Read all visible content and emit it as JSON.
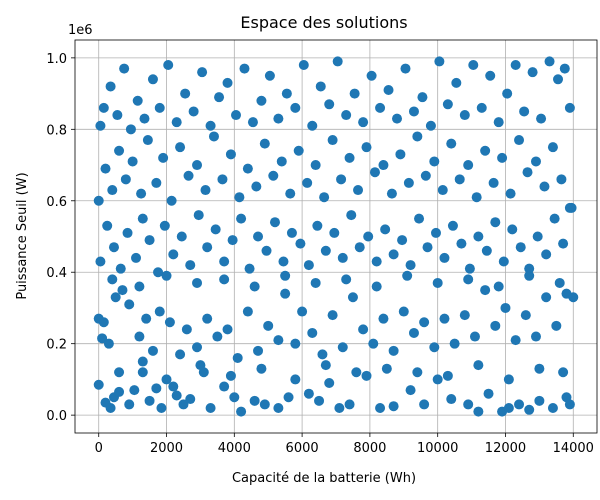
{
  "chart_data": {
    "type": "scatter",
    "title": "Espace des solutions",
    "xlabel": "Capacité de la batterie (Wh)",
    "ylabel": "Puissance Seuil (W)",
    "y_offset_label": "1e6",
    "xlim": [
      -700,
      14700
    ],
    "ylim": [
      -0.05,
      1.05
    ],
    "xticks": [
      0,
      2000,
      4000,
      6000,
      8000,
      10000,
      12000,
      14000
    ],
    "xtick_labels": [
      "0",
      "2000",
      "4000",
      "6000",
      "8000",
      "10000",
      "12000",
      "14000"
    ],
    "yticks": [
      0.0,
      0.2,
      0.4,
      0.6,
      0.8,
      1.0
    ],
    "ytick_labels": [
      "0.0",
      "0.2",
      "0.4",
      "0.6",
      "0.8",
      "1.0"
    ],
    "grid": true,
    "marker_color": "#1f77b4",
    "points": [
      [
        0,
        0.085
      ],
      [
        100,
        0.215
      ],
      [
        150,
        0.26
      ],
      [
        200,
        0.035
      ],
      [
        350,
        0.02
      ],
      [
        450,
        0.05
      ],
      [
        600,
        0.065
      ],
      [
        900,
        0.03
      ],
      [
        1050,
        0.07
      ],
      [
        1300,
        0.12
      ],
      [
        1500,
        0.04
      ],
      [
        1700,
        0.075
      ],
      [
        1850,
        0.02
      ],
      [
        2000,
        0.1
      ],
      [
        2300,
        0.055
      ],
      [
        2500,
        0.03
      ],
      [
        2700,
        0.045
      ],
      [
        3100,
        0.12
      ],
      [
        3300,
        0.02
      ],
      [
        3700,
        0.08
      ],
      [
        4000,
        0.05
      ],
      [
        4200,
        0.01
      ],
      [
        4600,
        0.04
      ],
      [
        4900,
        0.03
      ],
      [
        5300,
        0.02
      ],
      [
        5600,
        0.05
      ],
      [
        6200,
        0.06
      ],
      [
        6500,
        0.04
      ],
      [
        6800,
        0.09
      ],
      [
        7100,
        0.02
      ],
      [
        7400,
        0.03
      ],
      [
        7900,
        0.11
      ],
      [
        8300,
        0.02
      ],
      [
        8700,
        0.025
      ],
      [
        9200,
        0.07
      ],
      [
        9600,
        0.03
      ],
      [
        10000,
        0.1
      ],
      [
        10400,
        0.045
      ],
      [
        10900,
        0.03
      ],
      [
        11200,
        0.01
      ],
      [
        11500,
        0.06
      ],
      [
        11900,
        0.01
      ],
      [
        12100,
        0.02
      ],
      [
        12400,
        0.03
      ],
      [
        12700,
        0.015
      ],
      [
        13000,
        0.04
      ],
      [
        13400,
        0.02
      ],
      [
        13800,
        0.05
      ],
      [
        13900,
        0.03
      ],
      [
        0,
        0.27
      ],
      [
        300,
        0.2
      ],
      [
        500,
        0.33
      ],
      [
        700,
        0.35
      ],
      [
        900,
        0.31
      ],
      [
        1200,
        0.22
      ],
      [
        1400,
        0.27
      ],
      [
        1600,
        0.18
      ],
      [
        1800,
        0.29
      ],
      [
        2100,
        0.26
      ],
      [
        2400,
        0.17
      ],
      [
        2600,
        0.24
      ],
      [
        2900,
        0.19
      ],
      [
        3200,
        0.27
      ],
      [
        3500,
        0.22
      ],
      [
        3800,
        0.24
      ],
      [
        4100,
        0.16
      ],
      [
        4400,
        0.29
      ],
      [
        4700,
        0.18
      ],
      [
        5000,
        0.25
      ],
      [
        5300,
        0.21
      ],
      [
        5500,
        0.34
      ],
      [
        5800,
        0.2
      ],
      [
        6000,
        0.29
      ],
      [
        6300,
        0.23
      ],
      [
        6600,
        0.17
      ],
      [
        6900,
        0.28
      ],
      [
        7200,
        0.19
      ],
      [
        7500,
        0.33
      ],
      [
        7800,
        0.24
      ],
      [
        8100,
        0.2
      ],
      [
        8400,
        0.27
      ],
      [
        8700,
        0.18
      ],
      [
        9000,
        0.29
      ],
      [
        9300,
        0.23
      ],
      [
        9600,
        0.26
      ],
      [
        9900,
        0.19
      ],
      [
        10200,
        0.27
      ],
      [
        10500,
        0.2
      ],
      [
        10800,
        0.28
      ],
      [
        11100,
        0.22
      ],
      [
        11400,
        0.35
      ],
      [
        11700,
        0.25
      ],
      [
        12000,
        0.3
      ],
      [
        12300,
        0.21
      ],
      [
        12600,
        0.28
      ],
      [
        12900,
        0.22
      ],
      [
        13200,
        0.33
      ],
      [
        13500,
        0.25
      ],
      [
        13800,
        0.34
      ],
      [
        14000,
        0.33
      ],
      [
        50,
        0.43
      ],
      [
        250,
        0.53
      ],
      [
        450,
        0.47
      ],
      [
        650,
        0.41
      ],
      [
        850,
        0.51
      ],
      [
        1100,
        0.44
      ],
      [
        1300,
        0.55
      ],
      [
        1500,
        0.49
      ],
      [
        1750,
        0.4
      ],
      [
        1950,
        0.53
      ],
      [
        2200,
        0.45
      ],
      [
        2450,
        0.5
      ],
      [
        2700,
        0.42
      ],
      [
        2950,
        0.56
      ],
      [
        3200,
        0.47
      ],
      [
        3450,
        0.52
      ],
      [
        3700,
        0.43
      ],
      [
        3950,
        0.49
      ],
      [
        4200,
        0.55
      ],
      [
        4450,
        0.41
      ],
      [
        4700,
        0.5
      ],
      [
        4950,
        0.46
      ],
      [
        5200,
        0.54
      ],
      [
        5450,
        0.43
      ],
      [
        5700,
        0.51
      ],
      [
        5950,
        0.48
      ],
      [
        6200,
        0.42
      ],
      [
        6450,
        0.53
      ],
      [
        6700,
        0.46
      ],
      [
        6950,
        0.51
      ],
      [
        7200,
        0.44
      ],
      [
        7450,
        0.56
      ],
      [
        7700,
        0.47
      ],
      [
        7950,
        0.5
      ],
      [
        8200,
        0.43
      ],
      [
        8450,
        0.52
      ],
      [
        8700,
        0.45
      ],
      [
        8950,
        0.49
      ],
      [
        9200,
        0.42
      ],
      [
        9450,
        0.55
      ],
      [
        9700,
        0.47
      ],
      [
        9950,
        0.51
      ],
      [
        10200,
        0.44
      ],
      [
        10450,
        0.53
      ],
      [
        10700,
        0.48
      ],
      [
        10950,
        0.41
      ],
      [
        11200,
        0.5
      ],
      [
        11450,
        0.46
      ],
      [
        11700,
        0.54
      ],
      [
        11950,
        0.43
      ],
      [
        12200,
        0.52
      ],
      [
        12450,
        0.47
      ],
      [
        12700,
        0.41
      ],
      [
        12950,
        0.5
      ],
      [
        13200,
        0.45
      ],
      [
        13450,
        0.55
      ],
      [
        13700,
        0.48
      ],
      [
        13950,
        0.58
      ],
      [
        0,
        0.6
      ],
      [
        200,
        0.69
      ],
      [
        400,
        0.63
      ],
      [
        600,
        0.74
      ],
      [
        800,
        0.66
      ],
      [
        1000,
        0.71
      ],
      [
        1250,
        0.62
      ],
      [
        1450,
        0.77
      ],
      [
        1700,
        0.65
      ],
      [
        1900,
        0.72
      ],
      [
        2150,
        0.6
      ],
      [
        2400,
        0.75
      ],
      [
        2650,
        0.67
      ],
      [
        2900,
        0.7
      ],
      [
        3150,
        0.63
      ],
      [
        3400,
        0.78
      ],
      [
        3650,
        0.66
      ],
      [
        3900,
        0.73
      ],
      [
        4150,
        0.61
      ],
      [
        4400,
        0.69
      ],
      [
        4650,
        0.64
      ],
      [
        4900,
        0.76
      ],
      [
        5150,
        0.67
      ],
      [
        5400,
        0.71
      ],
      [
        5650,
        0.62
      ],
      [
        5900,
        0.74
      ],
      [
        6150,
        0.65
      ],
      [
        6400,
        0.7
      ],
      [
        6650,
        0.61
      ],
      [
        6900,
        0.77
      ],
      [
        7150,
        0.66
      ],
      [
        7400,
        0.72
      ],
      [
        7650,
        0.63
      ],
      [
        7900,
        0.75
      ],
      [
        8150,
        0.68
      ],
      [
        8400,
        0.7
      ],
      [
        8650,
        0.62
      ],
      [
        8900,
        0.73
      ],
      [
        9150,
        0.65
      ],
      [
        9400,
        0.78
      ],
      [
        9650,
        0.67
      ],
      [
        9900,
        0.71
      ],
      [
        10150,
        0.63
      ],
      [
        10400,
        0.76
      ],
      [
        10650,
        0.66
      ],
      [
        10900,
        0.7
      ],
      [
        11150,
        0.61
      ],
      [
        11400,
        0.74
      ],
      [
        11650,
        0.65
      ],
      [
        11900,
        0.72
      ],
      [
        12150,
        0.62
      ],
      [
        12400,
        0.77
      ],
      [
        12650,
        0.68
      ],
      [
        12900,
        0.71
      ],
      [
        13150,
        0.64
      ],
      [
        13400,
        0.75
      ],
      [
        13650,
        0.66
      ],
      [
        13900,
        0.58
      ],
      [
        50,
        0.81
      ],
      [
        150,
        0.86
      ],
      [
        350,
        0.92
      ],
      [
        550,
        0.84
      ],
      [
        750,
        0.97
      ],
      [
        950,
        0.8
      ],
      [
        1150,
        0.88
      ],
      [
        1350,
        0.83
      ],
      [
        1600,
        0.94
      ],
      [
        1800,
        0.86
      ],
      [
        2050,
        0.98
      ],
      [
        2300,
        0.82
      ],
      [
        2550,
        0.9
      ],
      [
        2800,
        0.85
      ],
      [
        3050,
        0.96
      ],
      [
        3300,
        0.81
      ],
      [
        3550,
        0.89
      ],
      [
        3800,
        0.93
      ],
      [
        4050,
        0.84
      ],
      [
        4300,
        0.97
      ],
      [
        4550,
        0.82
      ],
      [
        4800,
        0.88
      ],
      [
        5050,
        0.95
      ],
      [
        5300,
        0.83
      ],
      [
        5550,
        0.9
      ],
      [
        5800,
        0.86
      ],
      [
        6050,
        0.98
      ],
      [
        6300,
        0.81
      ],
      [
        6550,
        0.92
      ],
      [
        6800,
        0.87
      ],
      [
        7050,
        0.99
      ],
      [
        7300,
        0.84
      ],
      [
        7550,
        0.9
      ],
      [
        7800,
        0.82
      ],
      [
        8050,
        0.95
      ],
      [
        8300,
        0.86
      ],
      [
        8550,
        0.91
      ],
      [
        8800,
        0.83
      ],
      [
        9050,
        0.97
      ],
      [
        9300,
        0.85
      ],
      [
        9550,
        0.89
      ],
      [
        9800,
        0.81
      ],
      [
        10050,
        0.99
      ],
      [
        10300,
        0.87
      ],
      [
        10550,
        0.93
      ],
      [
        10800,
        0.84
      ],
      [
        11050,
        0.98
      ],
      [
        11300,
        0.86
      ],
      [
        11550,
        0.95
      ],
      [
        11800,
        0.82
      ],
      [
        12050,
        0.9
      ],
      [
        12300,
        0.98
      ],
      [
        12550,
        0.85
      ],
      [
        12800,
        0.96
      ],
      [
        13050,
        0.83
      ],
      [
        13300,
        0.99
      ],
      [
        13550,
        0.94
      ],
      [
        13750,
        0.97
      ],
      [
        13900,
        0.86
      ],
      [
        600,
        0.12
      ],
      [
        1300,
        0.15
      ],
      [
        2200,
        0.08
      ],
      [
        3000,
        0.14
      ],
      [
        3900,
        0.11
      ],
      [
        4800,
        0.13
      ],
      [
        5800,
        0.1
      ],
      [
        6700,
        0.14
      ],
      [
        7600,
        0.12
      ],
      [
        8500,
        0.13
      ],
      [
        9400,
        0.12
      ],
      [
        10300,
        0.11
      ],
      [
        11200,
        0.14
      ],
      [
        12100,
        0.1
      ],
      [
        13000,
        0.13
      ],
      [
        13700,
        0.12
      ],
      [
        400,
        0.38
      ],
      [
        1200,
        0.36
      ],
      [
        2000,
        0.39
      ],
      [
        2900,
        0.37
      ],
      [
        3700,
        0.38
      ],
      [
        4600,
        0.36
      ],
      [
        5500,
        0.39
      ],
      [
        6400,
        0.37
      ],
      [
        7300,
        0.38
      ],
      [
        8200,
        0.36
      ],
      [
        9100,
        0.39
      ],
      [
        10000,
        0.37
      ],
      [
        10900,
        0.38
      ],
      [
        11800,
        0.36
      ],
      [
        12700,
        0.39
      ],
      [
        13600,
        0.37
      ]
    ]
  }
}
